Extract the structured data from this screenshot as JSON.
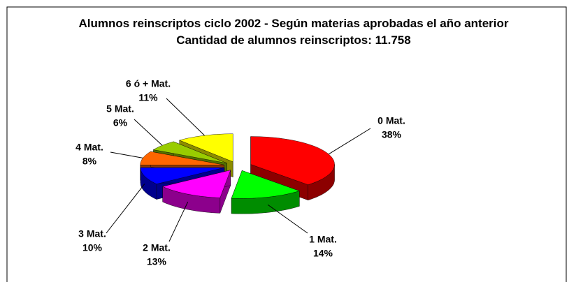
{
  "chart_data": {
    "type": "pie",
    "title": "Alumnos reinscriptos ciclo 2002 - Según materias aprobadas el año anterior",
    "subtitle": "Cantidad de alumnos reinscriptos: 11.758",
    "categories": [
      "0 Mat.",
      "1 Mat.",
      "2 Mat.",
      "3 Mat.",
      "4 Mat.",
      "5 Mat.",
      "6 ó + Mat."
    ],
    "values": [
      38,
      14,
      13,
      10,
      8,
      6,
      11
    ],
    "value_labels": [
      "38%",
      "14%",
      "13%",
      "10%",
      "8%",
      "6%",
      "11%"
    ],
    "colors": [
      "#ff0000",
      "#00ff00",
      "#ff00ff",
      "#0000ff",
      "#ff6600",
      "#99cc00",
      "#ffff00"
    ]
  }
}
